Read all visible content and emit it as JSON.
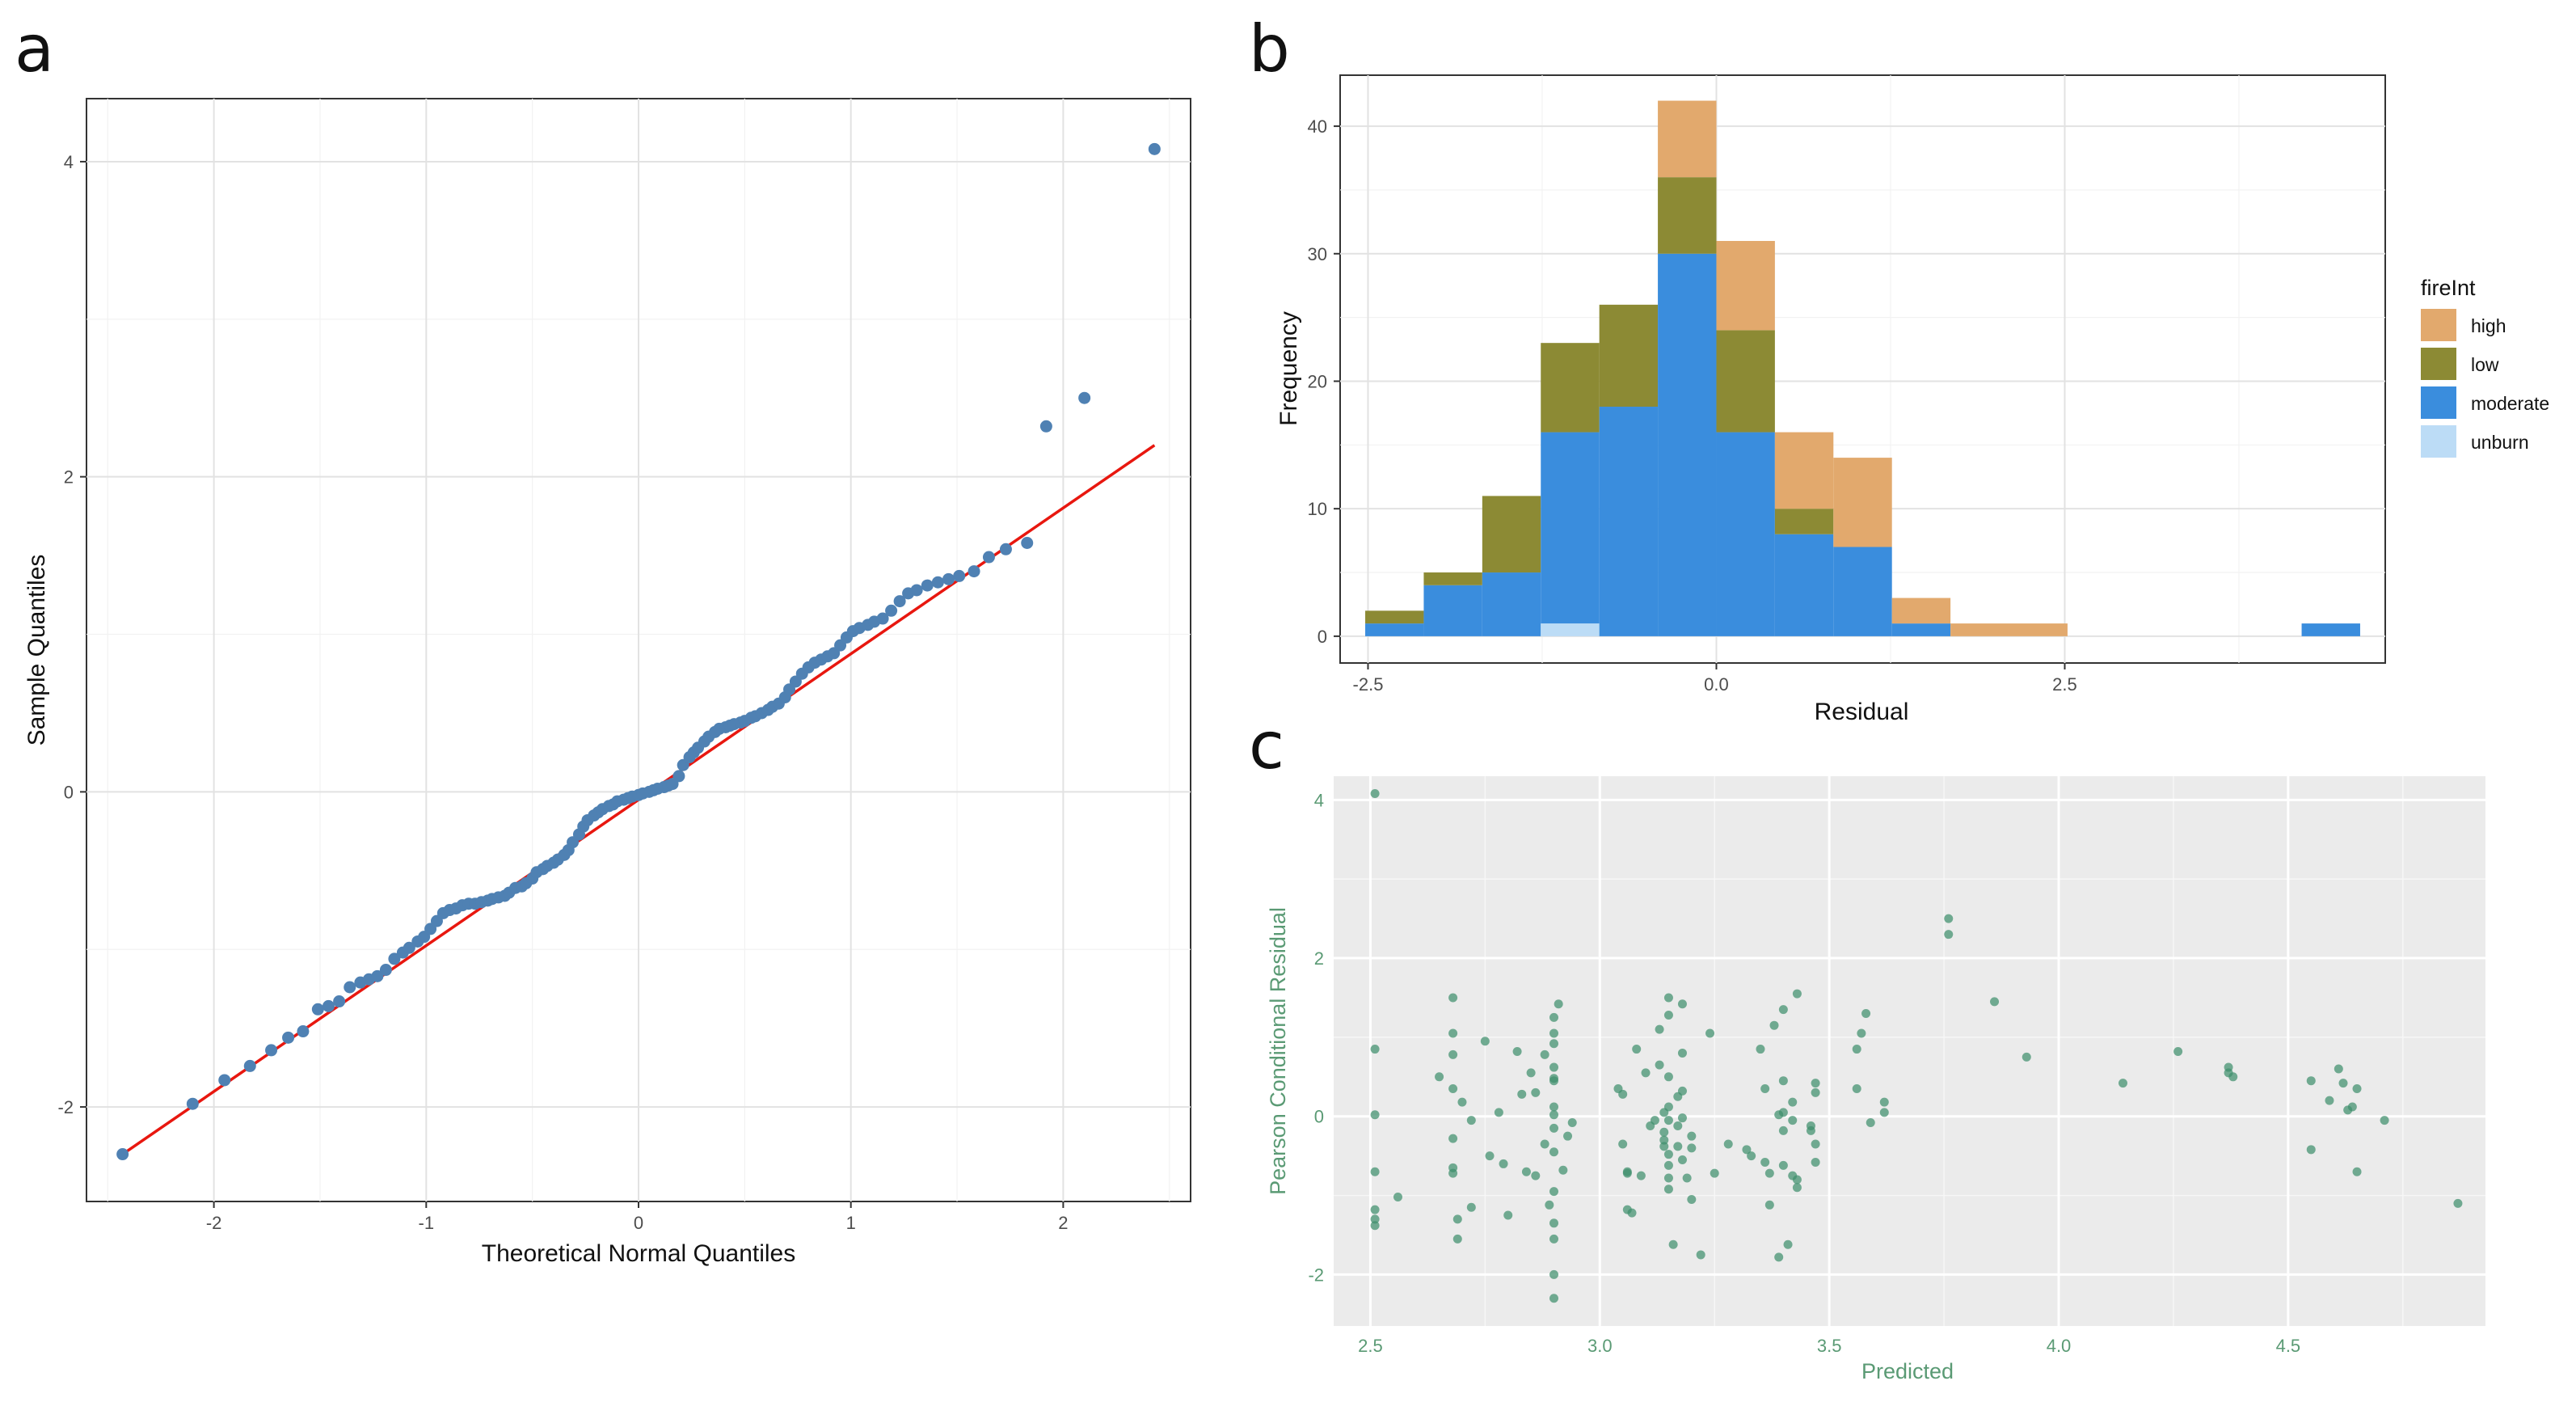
{
  "panel_labels": {
    "a": "a",
    "b": "b",
    "c": "c"
  },
  "chart_data": [
    {
      "id": "a",
      "type": "scatter",
      "title": "",
      "xlabel": "Theoretical Normal Quantiles",
      "ylabel": "Sample Quantiles",
      "xlim": [
        -2.6,
        2.6
      ],
      "ylim": [
        -2.6,
        4.4
      ],
      "xticks": [
        -2,
        -1,
        0,
        1,
        2
      ],
      "yticks": [
        -2,
        0,
        2,
        4
      ],
      "point_color": "#4f81b3",
      "line_color": "#e8170f",
      "reference_line": [
        [
          -2.43,
          -2.3
        ],
        [
          2.43,
          2.2
        ]
      ],
      "points": [
        [
          -2.43,
          -2.3
        ],
        [
          -2.1,
          -1.98
        ],
        [
          -1.95,
          -1.83
        ],
        [
          -1.83,
          -1.74
        ],
        [
          -1.73,
          -1.64
        ],
        [
          -1.65,
          -1.56
        ],
        [
          -1.58,
          -1.52
        ],
        [
          -1.51,
          -1.38
        ],
        [
          -1.46,
          -1.36
        ],
        [
          -1.41,
          -1.33
        ],
        [
          -1.36,
          -1.24
        ],
        [
          -1.31,
          -1.21
        ],
        [
          -1.27,
          -1.19
        ],
        [
          -1.23,
          -1.17
        ],
        [
          -1.19,
          -1.13
        ],
        [
          -1.15,
          -1.06
        ],
        [
          -1.11,
          -1.02
        ],
        [
          -1.08,
          -0.99
        ],
        [
          -1.04,
          -0.95
        ],
        [
          -1.01,
          -0.92
        ],
        [
          -0.98,
          -0.87
        ],
        [
          -0.95,
          -0.82
        ],
        [
          -0.92,
          -0.77
        ],
        [
          -0.89,
          -0.75
        ],
        [
          -0.86,
          -0.74
        ],
        [
          -0.83,
          -0.72
        ],
        [
          -0.8,
          -0.71
        ],
        [
          -0.77,
          -0.71
        ],
        [
          -0.74,
          -0.7
        ],
        [
          -0.71,
          -0.69
        ],
        [
          -0.69,
          -0.68
        ],
        [
          -0.66,
          -0.67
        ],
        [
          -0.63,
          -0.66
        ],
        [
          -0.61,
          -0.64
        ],
        [
          -0.58,
          -0.61
        ],
        [
          -0.55,
          -0.6
        ],
        [
          -0.53,
          -0.58
        ],
        [
          -0.5,
          -0.55
        ],
        [
          -0.48,
          -0.51
        ],
        [
          -0.45,
          -0.49
        ],
        [
          -0.43,
          -0.47
        ],
        [
          -0.4,
          -0.45
        ],
        [
          -0.38,
          -0.43
        ],
        [
          -0.35,
          -0.4
        ],
        [
          -0.33,
          -0.37
        ],
        [
          -0.31,
          -0.32
        ],
        [
          -0.28,
          -0.27
        ],
        [
          -0.26,
          -0.22
        ],
        [
          -0.24,
          -0.18
        ],
        [
          -0.21,
          -0.15
        ],
        [
          -0.19,
          -0.13
        ],
        [
          -0.17,
          -0.11
        ],
        [
          -0.14,
          -0.09
        ],
        [
          -0.12,
          -0.08
        ],
        [
          -0.1,
          -0.06
        ],
        [
          -0.07,
          -0.05
        ],
        [
          -0.05,
          -0.04
        ],
        [
          -0.03,
          -0.03
        ],
        [
          0.0,
          -0.02
        ],
        [
          0.02,
          -0.01
        ],
        [
          0.05,
          0.0
        ],
        [
          0.07,
          0.01
        ],
        [
          0.09,
          0.02
        ],
        [
          0.12,
          0.03
        ],
        [
          0.14,
          0.04
        ],
        [
          0.16,
          0.05
        ],
        [
          0.19,
          0.1
        ],
        [
          0.21,
          0.17
        ],
        [
          0.24,
          0.22
        ],
        [
          0.26,
          0.25
        ],
        [
          0.28,
          0.28
        ],
        [
          0.31,
          0.32
        ],
        [
          0.33,
          0.35
        ],
        [
          0.36,
          0.38
        ],
        [
          0.38,
          0.4
        ],
        [
          0.41,
          0.41
        ],
        [
          0.43,
          0.42
        ],
        [
          0.45,
          0.43
        ],
        [
          0.48,
          0.44
        ],
        [
          0.5,
          0.45
        ],
        [
          0.53,
          0.47
        ],
        [
          0.55,
          0.48
        ],
        [
          0.58,
          0.5
        ],
        [
          0.61,
          0.52
        ],
        [
          0.63,
          0.54
        ],
        [
          0.66,
          0.56
        ],
        [
          0.69,
          0.6
        ],
        [
          0.71,
          0.65
        ],
        [
          0.74,
          0.7
        ],
        [
          0.77,
          0.75
        ],
        [
          0.8,
          0.79
        ],
        [
          0.83,
          0.82
        ],
        [
          0.86,
          0.84
        ],
        [
          0.89,
          0.86
        ],
        [
          0.92,
          0.88
        ],
        [
          0.95,
          0.93
        ],
        [
          0.98,
          0.98
        ],
        [
          1.01,
          1.02
        ],
        [
          1.04,
          1.04
        ],
        [
          1.08,
          1.06
        ],
        [
          1.11,
          1.08
        ],
        [
          1.15,
          1.1
        ],
        [
          1.19,
          1.15
        ],
        [
          1.23,
          1.21
        ],
        [
          1.27,
          1.26
        ],
        [
          1.31,
          1.28
        ],
        [
          1.36,
          1.31
        ],
        [
          1.41,
          1.33
        ],
        [
          1.46,
          1.35
        ],
        [
          1.51,
          1.37
        ],
        [
          1.58,
          1.4
        ],
        [
          1.65,
          1.49
        ],
        [
          1.73,
          1.54
        ],
        [
          1.83,
          1.58
        ],
        [
          1.92,
          2.32
        ],
        [
          2.1,
          2.5
        ],
        [
          2.43,
          4.08
        ]
      ]
    },
    {
      "id": "b",
      "type": "bar",
      "stacked": true,
      "title": "",
      "xlabel": "Residual",
      "ylabel": "Frequency",
      "xlim": [
        -2.7,
        4.8
      ],
      "ylim": [
        -2.1,
        44
      ],
      "xticks": [
        -2.5,
        0.0,
        2.5
      ],
      "xtick_labels": [
        "-2.5",
        "0.0",
        "2.5"
      ],
      "yticks": [
        0,
        10,
        20,
        30,
        40
      ],
      "bin_width": 0.42,
      "bin_centers": [
        -2.31,
        -1.89,
        -1.47,
        -1.05,
        -0.63,
        -0.21,
        0.21,
        0.63,
        1.05,
        1.47,
        1.89,
        2.31,
        2.73,
        3.15,
        3.57,
        3.99,
        4.41
      ],
      "series": [
        {
          "name": "unburn",
          "color": "#bcdcf6",
          "values": [
            0,
            0,
            0,
            1,
            0,
            0,
            0,
            0,
            0,
            0,
            0,
            0,
            0,
            0,
            0,
            0,
            0
          ]
        },
        {
          "name": "moderate",
          "color": "#3a8ddd",
          "values": [
            1,
            4,
            5,
            15,
            18,
            30,
            16,
            8,
            7,
            1,
            0,
            0,
            0,
            0,
            0,
            0,
            1
          ]
        },
        {
          "name": "low",
          "color": "#8c8a34",
          "values": [
            1,
            1,
            6,
            7,
            8,
            6,
            8,
            2,
            0,
            0,
            0,
            0,
            0,
            0,
            0,
            0,
            0
          ]
        },
        {
          "name": "high",
          "color": "#e2a96d",
          "values": [
            0,
            0,
            0,
            0,
            0,
            6,
            7,
            6,
            7,
            2,
            1,
            1,
            0,
            0,
            0,
            0,
            0
          ]
        }
      ],
      "legend": {
        "title": "fireInt",
        "position": "right",
        "entries": [
          "high",
          "low",
          "moderate",
          "unburn"
        ]
      }
    },
    {
      "id": "c",
      "type": "scatter",
      "title": "",
      "xlabel": "Predicted",
      "ylabel": "Pearson Conditional Residual",
      "xlim": [
        2.42,
        4.93
      ],
      "ylim": [
        -2.65,
        4.3
      ],
      "xticks": [
        2.5,
        3.0,
        3.5,
        4.0,
        4.5
      ],
      "xtick_labels": [
        "2.5",
        "3.0",
        "3.5",
        "4.0",
        "4.5"
      ],
      "yticks": [
        -2,
        0,
        2,
        4
      ],
      "point_color": "#3f8f6c",
      "points": [
        [
          2.51,
          4.08
        ],
        [
          2.51,
          0.85
        ],
        [
          2.51,
          0.02
        ],
        [
          2.51,
          -0.7
        ],
        [
          2.51,
          -1.18
        ],
        [
          2.51,
          -1.3
        ],
        [
          2.51,
          -1.38
        ],
        [
          2.56,
          -1.02
        ],
        [
          2.65,
          0.5
        ],
        [
          2.68,
          1.5
        ],
        [
          2.68,
          1.05
        ],
        [
          2.68,
          0.78
        ],
        [
          2.68,
          0.35
        ],
        [
          2.68,
          -0.28
        ],
        [
          2.68,
          -0.65
        ],
        [
          2.68,
          -0.72
        ],
        [
          2.69,
          -1.3
        ],
        [
          2.69,
          -1.55
        ],
        [
          2.7,
          0.18
        ],
        [
          2.72,
          -0.05
        ],
        [
          2.72,
          -1.15
        ],
        [
          2.75,
          0.95
        ],
        [
          2.76,
          -0.5
        ],
        [
          2.78,
          0.05
        ],
        [
          2.79,
          -0.6
        ],
        [
          2.8,
          -1.25
        ],
        [
          2.82,
          0.82
        ],
        [
          2.83,
          0.28
        ],
        [
          2.84,
          -0.7
        ],
        [
          2.85,
          0.55
        ],
        [
          2.86,
          0.3
        ],
        [
          2.86,
          -0.75
        ],
        [
          2.88,
          0.78
        ],
        [
          2.88,
          -0.35
        ],
        [
          2.89,
          -1.12
        ],
        [
          2.9,
          -1.35
        ],
        [
          2.9,
          1.25
        ],
        [
          2.9,
          1.05
        ],
        [
          2.9,
          0.92
        ],
        [
          2.9,
          0.62
        ],
        [
          2.9,
          0.48
        ],
        [
          2.9,
          0.45
        ],
        [
          2.9,
          0.12
        ],
        [
          2.9,
          0.02
        ],
        [
          2.9,
          -0.15
        ],
        [
          2.9,
          -0.45
        ],
        [
          2.9,
          -0.95
        ],
        [
          2.9,
          -1.55
        ],
        [
          2.9,
          -2.0
        ],
        [
          2.9,
          -2.3
        ],
        [
          2.91,
          1.42
        ],
        [
          2.92,
          -0.68
        ],
        [
          2.93,
          -0.25
        ],
        [
          2.94,
          -0.08
        ],
        [
          3.04,
          0.35
        ],
        [
          3.05,
          0.28
        ],
        [
          3.05,
          -0.35
        ],
        [
          3.06,
          -0.7
        ],
        [
          3.06,
          -0.72
        ],
        [
          3.06,
          -1.18
        ],
        [
          3.07,
          -1.22
        ],
        [
          3.08,
          0.85
        ],
        [
          3.09,
          -0.75
        ],
        [
          3.1,
          0.55
        ],
        [
          3.11,
          -0.12
        ],
        [
          3.12,
          -0.05
        ],
        [
          3.13,
          1.1
        ],
        [
          3.13,
          0.65
        ],
        [
          3.14,
          0.05
        ],
        [
          3.14,
          -0.2
        ],
        [
          3.14,
          -0.3
        ],
        [
          3.14,
          -0.38
        ],
        [
          3.15,
          1.5
        ],
        [
          3.15,
          1.28
        ],
        [
          3.15,
          0.5
        ],
        [
          3.15,
          0.12
        ],
        [
          3.15,
          -0.05
        ],
        [
          3.15,
          -0.48
        ],
        [
          3.15,
          -0.62
        ],
        [
          3.15,
          -0.78
        ],
        [
          3.15,
          -0.92
        ],
        [
          3.16,
          -1.62
        ],
        [
          3.17,
          0.25
        ],
        [
          3.17,
          -0.12
        ],
        [
          3.17,
          -0.38
        ],
        [
          3.18,
          1.42
        ],
        [
          3.18,
          0.8
        ],
        [
          3.18,
          0.32
        ],
        [
          3.18,
          -0.02
        ],
        [
          3.18,
          -0.55
        ],
        [
          3.19,
          -0.78
        ],
        [
          3.2,
          -1.05
        ],
        [
          3.2,
          -0.25
        ],
        [
          3.2,
          -0.4
        ],
        [
          3.22,
          -1.75
        ],
        [
          3.24,
          1.05
        ],
        [
          3.25,
          -0.72
        ],
        [
          3.28,
          -0.35
        ],
        [
          3.32,
          -0.42
        ],
        [
          3.33,
          -0.5
        ],
        [
          3.35,
          0.85
        ],
        [
          3.36,
          0.35
        ],
        [
          3.36,
          -0.58
        ],
        [
          3.37,
          -0.72
        ],
        [
          3.37,
          -1.12
        ],
        [
          3.38,
          1.15
        ],
        [
          3.39,
          -1.78
        ],
        [
          3.39,
          0.02
        ],
        [
          3.4,
          1.35
        ],
        [
          3.4,
          0.45
        ],
        [
          3.4,
          0.05
        ],
        [
          3.4,
          -0.18
        ],
        [
          3.4,
          -0.62
        ],
        [
          3.41,
          -1.62
        ],
        [
          3.42,
          0.18
        ],
        [
          3.42,
          -0.05
        ],
        [
          3.42,
          -0.75
        ],
        [
          3.43,
          -0.8
        ],
        [
          3.43,
          -0.9
        ],
        [
          3.43,
          1.55
        ],
        [
          3.46,
          -0.12
        ],
        [
          3.46,
          -0.18
        ],
        [
          3.47,
          0.42
        ],
        [
          3.47,
          0.3
        ],
        [
          3.47,
          -0.35
        ],
        [
          3.47,
          -0.58
        ],
        [
          3.56,
          0.85
        ],
        [
          3.56,
          0.35
        ],
        [
          3.57,
          1.05
        ],
        [
          3.58,
          1.3
        ],
        [
          3.59,
          -0.08
        ],
        [
          3.62,
          0.18
        ],
        [
          3.62,
          0.05
        ],
        [
          3.76,
          2.5
        ],
        [
          3.76,
          2.3
        ],
        [
          3.86,
          1.45
        ],
        [
          3.93,
          0.75
        ],
        [
          4.14,
          0.42
        ],
        [
          4.26,
          0.82
        ],
        [
          4.37,
          0.62
        ],
        [
          4.37,
          0.55
        ],
        [
          4.38,
          0.5
        ],
        [
          4.55,
          0.45
        ],
        [
          4.55,
          -0.42
        ],
        [
          4.59,
          0.2
        ],
        [
          4.61,
          0.6
        ],
        [
          4.62,
          0.42
        ],
        [
          4.63,
          0.08
        ],
        [
          4.64,
          0.12
        ],
        [
          4.65,
          0.35
        ],
        [
          4.65,
          -0.7
        ],
        [
          4.71,
          -0.05
        ],
        [
          4.87,
          -1.1
        ]
      ]
    }
  ]
}
